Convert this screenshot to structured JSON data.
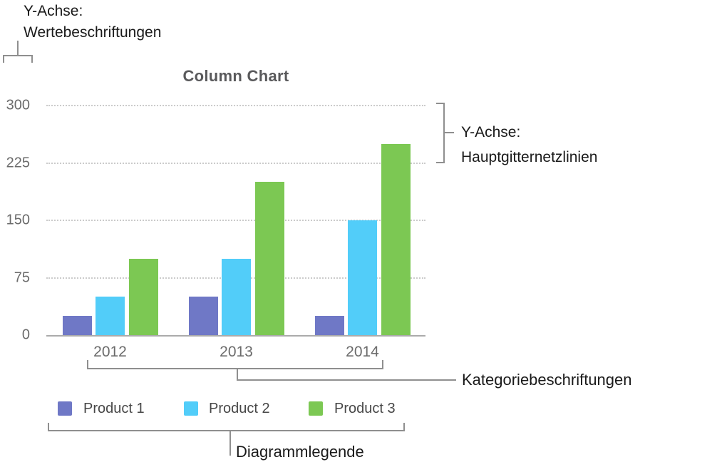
{
  "figure": {
    "annotations": {
      "value_labels_line1": "Y-Achse:",
      "value_labels_line2": "Wertebeschriftungen",
      "gridlines_line1": "Y-Achse:",
      "gridlines_line2": "Hauptgitternetzlinien",
      "category_labels": "Kategoriebeschriftungen",
      "chart_legend": "Diagrammlegende"
    },
    "annotation_text_color": "#1a1a1a",
    "bracket_color": "#8f8f8f"
  },
  "chart_data": {
    "type": "bar",
    "title": "Column Chart",
    "categories": [
      "2012",
      "2013",
      "2014"
    ],
    "series": [
      {
        "name": "Product 1",
        "color": "#6f78c6",
        "values": [
          25,
          50,
          25
        ]
      },
      {
        "name": "Product 2",
        "color": "#52cdf9",
        "values": [
          50,
          100,
          150
        ]
      },
      {
        "name": "Product 3",
        "color": "#7cc853",
        "values": [
          100,
          200,
          250
        ]
      }
    ],
    "xlabel": "",
    "ylabel": "",
    "y_ticks": [
      0,
      75,
      150,
      225,
      300
    ],
    "ylim": [
      0,
      300
    ],
    "gridlines": "horizontal-dotted",
    "legend_position": "bottom",
    "title_color": "#59595b",
    "axis_label_color": "#6b6b6b",
    "legend_text_color": "#474747"
  }
}
